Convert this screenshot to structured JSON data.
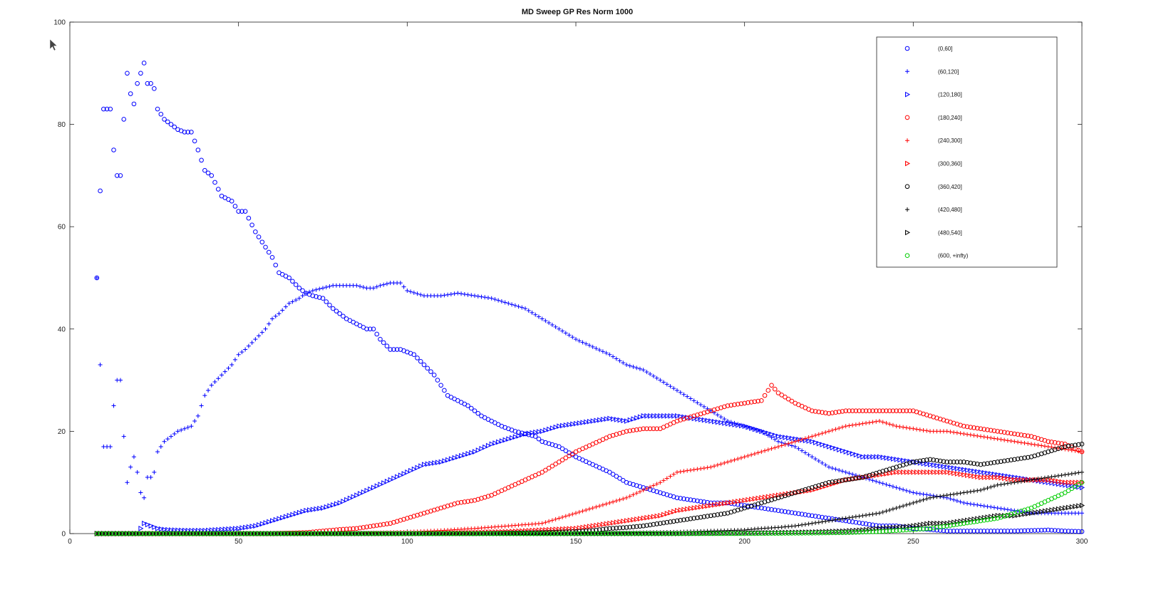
{
  "chart_data": {
    "type": "scatter",
    "title": "MD Sweep GP Res Norm 1000",
    "xlabel": "",
    "ylabel": "",
    "xlim": [
      0,
      300
    ],
    "ylim": [
      0,
      100
    ],
    "xticks": [
      "0",
      "50",
      "100",
      "150",
      "200",
      "250",
      "300"
    ],
    "yticks": [
      "0",
      "20",
      "40",
      "60",
      "80",
      "100"
    ],
    "grid": false,
    "legend_position": "top-right",
    "series": [
      {
        "name": "(0,60]",
        "color": "#0000ff",
        "marker": "circle",
        "x": [
          8,
          9,
          10,
          11,
          12,
          13,
          14,
          15,
          16,
          17,
          18,
          19,
          20,
          21,
          22,
          23,
          24,
          25,
          26,
          27,
          28,
          30,
          32,
          34,
          36,
          38,
          40,
          42,
          45,
          48,
          50,
          52,
          55,
          58,
          60,
          62,
          65,
          68,
          70,
          72,
          75,
          78,
          80,
          82,
          85,
          88,
          90,
          92,
          95,
          98,
          100,
          102,
          105,
          108,
          110,
          112,
          115,
          118,
          120,
          122,
          125,
          128,
          130,
          132,
          135,
          138,
          140,
          145,
          150,
          155,
          160,
          165,
          170,
          175,
          180,
          185,
          190,
          195,
          200,
          205,
          210,
          215,
          220,
          225,
          230,
          235,
          240,
          245,
          250,
          255,
          260,
          265,
          270,
          275,
          280,
          285,
          290,
          295,
          300
        ],
        "y": [
          50,
          67,
          83,
          83,
          83,
          75,
          70,
          70,
          81,
          90,
          86,
          84,
          88,
          90,
          92,
          88,
          88,
          87,
          83,
          82,
          81,
          80,
          79,
          78.5,
          78.5,
          75,
          71,
          70,
          66,
          65,
          63,
          63,
          59,
          56,
          54,
          51,
          50,
          48,
          47,
          46.5,
          46,
          44,
          43,
          42,
          41,
          40,
          40,
          38,
          36,
          36,
          35.5,
          35,
          33,
          31,
          29,
          27,
          26,
          25,
          24,
          23,
          22,
          21,
          20.5,
          20,
          19.5,
          19,
          18,
          17,
          15,
          13.5,
          12,
          10,
          9,
          8,
          7,
          6.5,
          6,
          6,
          5.5,
          5,
          4.5,
          4,
          3.5,
          3,
          2.5,
          2,
          1.5,
          1.5,
          1,
          0.8,
          0.5,
          0.5,
          0.5,
          0.5,
          0.5,
          0.6,
          0.7,
          0.5,
          0.4
        ]
      },
      {
        "name": "(60,120]",
        "color": "#0000ff",
        "marker": "plus",
        "x": [
          8,
          9,
          10,
          11,
          12,
          13,
          14,
          15,
          16,
          17,
          18,
          19,
          20,
          21,
          22,
          23,
          24,
          25,
          26,
          28,
          30,
          32,
          34,
          36,
          38,
          40,
          42,
          45,
          48,
          50,
          52,
          55,
          58,
          60,
          62,
          65,
          68,
          70,
          72,
          75,
          78,
          80,
          82,
          85,
          88,
          90,
          92,
          95,
          98,
          100,
          105,
          110,
          115,
          120,
          125,
          130,
          135,
          140,
          145,
          150,
          155,
          160,
          165,
          170,
          175,
          180,
          185,
          190,
          195,
          200,
          205,
          210,
          215,
          220,
          225,
          230,
          235,
          240,
          245,
          250,
          255,
          260,
          265,
          270,
          275,
          280,
          285,
          290,
          295,
          300
        ],
        "y": [
          50,
          33,
          17,
          17,
          17,
          25,
          30,
          30,
          19,
          10,
          13,
          15,
          12,
          8,
          7,
          11,
          11,
          12,
          16,
          18,
          19,
          20,
          20.5,
          21,
          23,
          27,
          29,
          31,
          33,
          35,
          36,
          38,
          40,
          42,
          43,
          45,
          46,
          47,
          47.5,
          48,
          48.5,
          48.5,
          48.5,
          48.5,
          48,
          48,
          48.5,
          49,
          49,
          47.5,
          46.5,
          46.5,
          47,
          46.5,
          46,
          45,
          44,
          42,
          40,
          38,
          36.5,
          35,
          33,
          32,
          30,
          28,
          26,
          24,
          22,
          21,
          20,
          18,
          17,
          15,
          13,
          12,
          11,
          10,
          9,
          8,
          7.5,
          7,
          6,
          5.5,
          5,
          4.5,
          4,
          4,
          4,
          4
        ]
      },
      {
        "name": "(120,180]",
        "color": "#0000ff",
        "marker": "triangle",
        "x": [
          8,
          10,
          12,
          14,
          16,
          18,
          20,
          22,
          24,
          26,
          28,
          30,
          35,
          40,
          45,
          50,
          55,
          60,
          65,
          70,
          75,
          80,
          85,
          90,
          95,
          100,
          105,
          110,
          115,
          120,
          125,
          130,
          135,
          140,
          145,
          150,
          155,
          160,
          165,
          170,
          175,
          180,
          185,
          190,
          195,
          200,
          205,
          210,
          215,
          220,
          225,
          230,
          235,
          240,
          245,
          250,
          255,
          260,
          265,
          270,
          275,
          280,
          285,
          290,
          295,
          300
        ],
        "y": [
          0,
          0,
          0,
          0,
          0,
          0,
          0,
          2,
          1.5,
          1,
          0.8,
          0.7,
          0.6,
          0.6,
          0.8,
          1,
          1.5,
          2.5,
          3.5,
          4.5,
          5,
          6,
          7.5,
          9,
          10.5,
          12,
          13.5,
          14,
          15,
          16,
          17.5,
          18.5,
          19.5,
          20,
          21,
          21.5,
          22,
          22.5,
          22,
          23,
          23,
          23,
          22.5,
          22,
          21.5,
          21,
          20,
          19,
          18.5,
          18,
          17,
          16,
          15,
          15,
          14.5,
          14,
          13.5,
          13,
          12.5,
          12,
          11.5,
          11,
          10.5,
          10,
          9.5,
          9
        ]
      },
      {
        "name": "(180,240]",
        "color": "#ff0000",
        "marker": "circle",
        "x": [
          8,
          20,
          40,
          60,
          70,
          75,
          80,
          85,
          90,
          95,
          100,
          105,
          110,
          115,
          120,
          125,
          130,
          135,
          140,
          145,
          150,
          155,
          160,
          165,
          170,
          175,
          180,
          185,
          190,
          195,
          200,
          205,
          208,
          210,
          215,
          220,
          225,
          230,
          235,
          240,
          245,
          250,
          255,
          260,
          265,
          270,
          275,
          280,
          285,
          290,
          295,
          300
        ],
        "y": [
          0,
          0,
          0,
          0,
          0.2,
          0.5,
          0.8,
          1,
          1.5,
          2,
          3,
          4,
          5,
          6,
          6.5,
          7.5,
          9,
          10.5,
          12,
          14,
          16,
          17.5,
          19,
          20,
          20.5,
          20.5,
          22,
          23,
          24,
          25,
          25.5,
          26,
          29,
          27.5,
          25.5,
          24,
          23.5,
          24,
          24,
          24,
          24,
          24,
          23,
          22,
          21,
          20.5,
          20,
          19.5,
          19,
          18,
          17.5,
          16
        ]
      },
      {
        "name": "(240,300]",
        "color": "#ff0000",
        "marker": "plus",
        "x": [
          8,
          40,
          80,
          100,
          110,
          120,
          130,
          140,
          145,
          150,
          155,
          160,
          165,
          170,
          175,
          180,
          185,
          190,
          195,
          200,
          205,
          210,
          215,
          220,
          225,
          230,
          235,
          240,
          245,
          250,
          255,
          260,
          265,
          270,
          275,
          280,
          285,
          290,
          295,
          300
        ],
        "y": [
          0,
          0,
          0,
          0.3,
          0.6,
          1,
          1.5,
          2,
          3,
          4,
          5,
          6,
          7,
          8.5,
          10,
          12,
          12.5,
          13,
          14,
          15,
          16,
          17,
          18,
          19,
          20,
          21,
          21.5,
          22,
          21,
          20.5,
          20,
          20,
          19.5,
          19,
          18.5,
          18,
          17.5,
          17,
          16.5,
          16
        ]
      },
      {
        "name": "(300,360]",
        "color": "#ff0000",
        "marker": "triangle",
        "x": [
          8,
          60,
          100,
          120,
          130,
          140,
          150,
          155,
          160,
          165,
          170,
          175,
          180,
          185,
          190,
          195,
          200,
          205,
          210,
          215,
          220,
          225,
          230,
          235,
          240,
          245,
          250,
          255,
          260,
          265,
          270,
          275,
          280,
          285,
          290,
          295,
          300
        ],
        "y": [
          0,
          0,
          0,
          0.2,
          0.4,
          0.7,
          1,
          1.5,
          2,
          2.5,
          3,
          3.5,
          4.5,
          5,
          5.5,
          6,
          6.5,
          7,
          7.5,
          8,
          8.5,
          9.5,
          10.5,
          11,
          11.5,
          12,
          12,
          12,
          12,
          11.5,
          11,
          11,
          10.5,
          10.5,
          10.5,
          10,
          10
        ]
      },
      {
        "name": "(360,420]",
        "color": "#000000",
        "marker": "circle",
        "x": [
          8,
          80,
          120,
          140,
          150,
          155,
          160,
          165,
          170,
          175,
          180,
          185,
          190,
          195,
          200,
          205,
          210,
          215,
          220,
          225,
          230,
          235,
          240,
          245,
          250,
          255,
          260,
          265,
          270,
          275,
          280,
          285,
          290,
          295,
          300
        ],
        "y": [
          0,
          0,
          0,
          0.2,
          0.4,
          0.6,
          1,
          1.2,
          1.5,
          2,
          2.5,
          3,
          3.5,
          4,
          5,
          6,
          7,
          8,
          9,
          10,
          10.5,
          11,
          12,
          13,
          14,
          14.5,
          14,
          14,
          13.5,
          14,
          14.5,
          15,
          16,
          17,
          17.5
        ]
      },
      {
        "name": "(420,480]",
        "color": "#000000",
        "marker": "plus",
        "x": [
          8,
          100,
          150,
          170,
          180,
          190,
          200,
          205,
          210,
          215,
          220,
          225,
          230,
          235,
          240,
          245,
          250,
          255,
          260,
          265,
          270,
          275,
          280,
          285,
          290,
          295,
          300
        ],
        "y": [
          0,
          0,
          0,
          0.2,
          0.3,
          0.5,
          0.7,
          1,
          1.2,
          1.5,
          2,
          2.5,
          3,
          3.5,
          4,
          5,
          6,
          7,
          7.5,
          8,
          8.5,
          9.5,
          10,
          10.5,
          11,
          11.5,
          12
        ]
      },
      {
        "name": "(480,540]",
        "color": "#000000",
        "marker": "triangle",
        "x": [
          8,
          120,
          180,
          200,
          210,
          220,
          230,
          235,
          240,
          245,
          250,
          255,
          260,
          265,
          270,
          275,
          280,
          285,
          290,
          295,
          300
        ],
        "y": [
          0,
          0,
          0,
          0.1,
          0.2,
          0.3,
          0.5,
          0.7,
          1,
          1.2,
          1.5,
          2,
          2,
          2.5,
          3,
          3.5,
          3.5,
          4,
          4.5,
          5,
          5.5
        ]
      },
      {
        "name": "(600, +infty)",
        "color": "#00cc00",
        "marker": "circle",
        "x": [
          8,
          50,
          100,
          150,
          200,
          220,
          230,
          235,
          240,
          245,
          250,
          255,
          260,
          265,
          270,
          275,
          280,
          285,
          290,
          295,
          300
        ],
        "y": [
          0,
          0,
          0,
          0,
          0,
          0.1,
          0.2,
          0.3,
          0.4,
          0.6,
          0.8,
          1,
          1.5,
          2,
          2.5,
          3,
          4,
          5,
          6.5,
          8,
          10
        ]
      }
    ]
  },
  "legend": {
    "entries": [
      "(0,60]",
      "(60,120]",
      "(120,180]",
      "(180,240]",
      "(240,300]",
      "(300,360]",
      "(360,420]",
      "(420,480]",
      "(480,540]",
      "(600, +infty)"
    ]
  }
}
